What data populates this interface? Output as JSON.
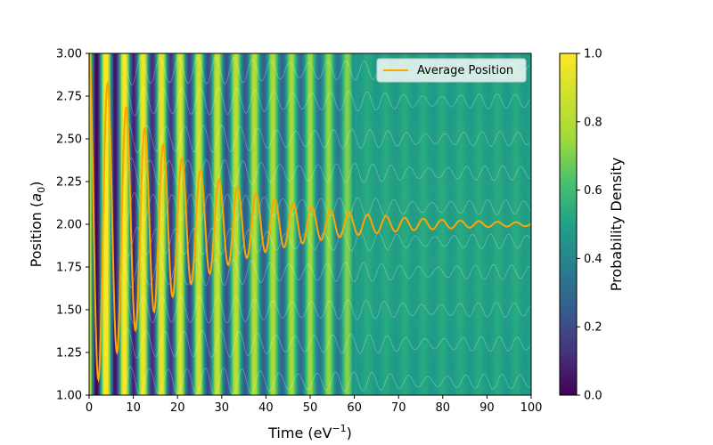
{
  "chart_data": {
    "type": "heatmap",
    "xlabel_main": "Time (eV",
    "xlabel_sup": "−1",
    "xlabel_end": ")",
    "ylabel_main": "Position (",
    "ylabel_sym": "a",
    "ylabel_sub": "0",
    "ylabel_end": ")",
    "xlim": [
      0,
      100
    ],
    "ylim": [
      1.0,
      3.0
    ],
    "xticks": [
      0,
      10,
      20,
      30,
      40,
      50,
      60,
      70,
      80,
      90,
      100
    ],
    "xtick_labels": [
      "0",
      "10",
      "20",
      "30",
      "40",
      "50",
      "60",
      "70",
      "80",
      "90",
      "100"
    ],
    "yticks": [
      1.0,
      1.25,
      1.5,
      1.75,
      2.0,
      2.25,
      2.5,
      2.75,
      3.0
    ],
    "ytick_labels": [
      "1.00",
      "1.25",
      "1.50",
      "1.75",
      "2.00",
      "2.25",
      "2.50",
      "2.75",
      "3.00"
    ],
    "colormap": "viridis",
    "colorbar": {
      "label": "Probability Density",
      "range": [
        0,
        1
      ],
      "ticks": [
        0.0,
        0.2,
        0.4,
        0.6,
        0.8,
        1.0
      ],
      "tick_labels": [
        "0.0",
        "0.2",
        "0.4",
        "0.6",
        "0.8",
        "1.0"
      ]
    },
    "background_model": {
      "description_of_bands": "vertical oscillating bands: bright near t~2-5, dark minima at t~1.7, ~6, ~8.5; band contrast decays with time",
      "oscillation_period": 4.2,
      "decay_time": 55,
      "late_time_level": 0.45
    },
    "series": [
      {
        "name": "Average Position",
        "color": "#FFA500",
        "model": "2 + 1.0*exp(-t/22)*cos(2*pi*t/4.2)",
        "x": [
          0,
          2,
          4.2,
          6.3,
          8.4,
          10.5,
          12.6,
          14.7,
          16.8,
          18.9,
          21.0,
          23.1,
          25.2,
          27.3,
          29.4,
          31.5,
          33.6,
          35.7,
          37.8,
          39.9,
          42.0,
          44.1,
          46.2,
          50.4,
          54.6,
          58.8,
          63.0,
          67.2,
          75.6,
          84.0,
          92.4,
          100
        ],
        "y": [
          3.0,
          1.1,
          2.8,
          1.22,
          2.62,
          1.45,
          2.49,
          1.55,
          2.38,
          1.66,
          2.3,
          1.72,
          2.24,
          1.79,
          2.17,
          1.84,
          2.15,
          1.87,
          2.11,
          1.9,
          2.09,
          1.93,
          2.07,
          2.06,
          2.04,
          2.03,
          2.02,
          2.01,
          2.01,
          2.0,
          2.0,
          2.0
        ]
      }
    ],
    "legend": {
      "position": "top-right",
      "entries": [
        "Average Position"
      ]
    }
  }
}
